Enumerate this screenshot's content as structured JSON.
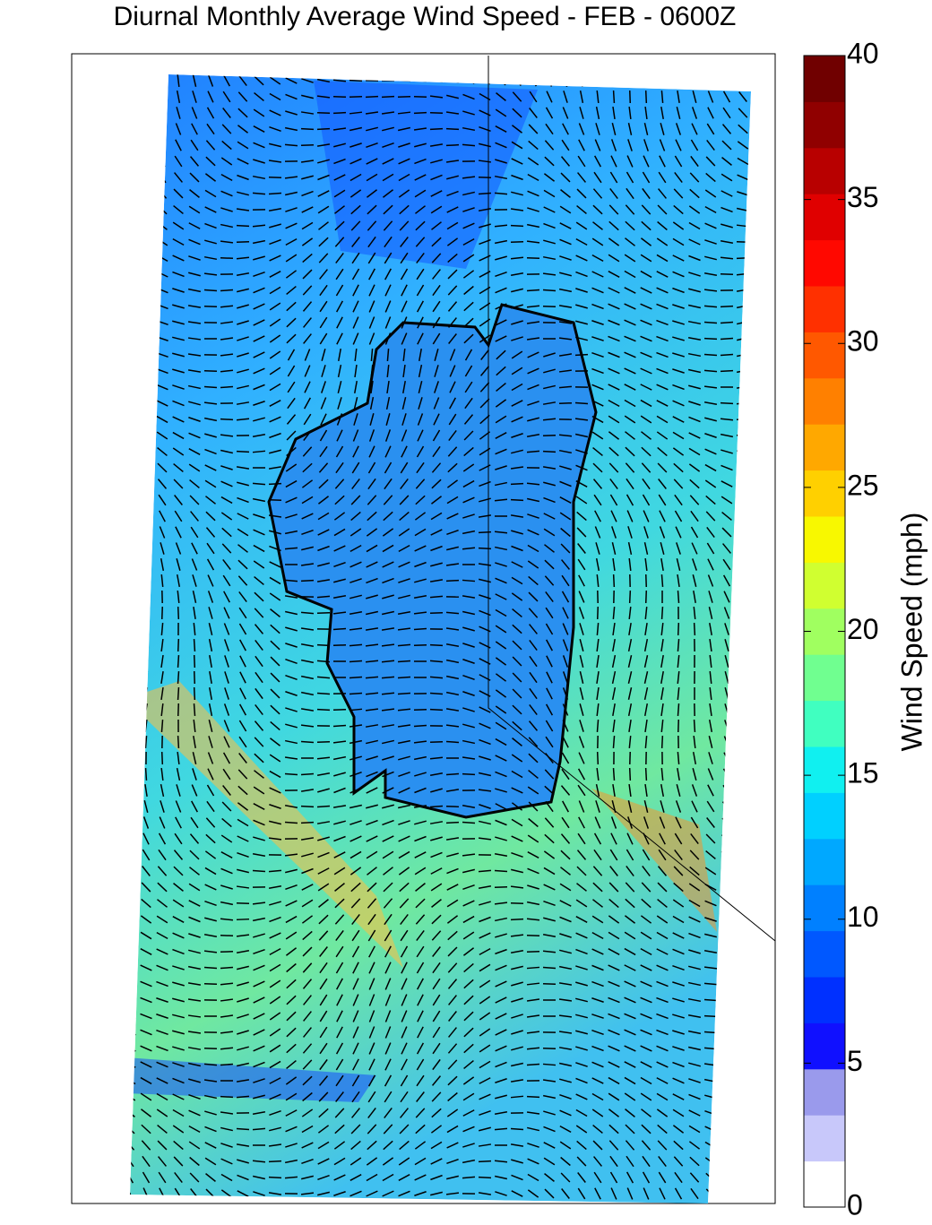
{
  "chart_data": {
    "type": "heatmap",
    "title": "Diurnal Monthly Average Wind Speed - FEB - 0600Z",
    "colorbar": {
      "label": "Wind Speed (mph)",
      "lim": [
        0,
        40
      ],
      "ticks": [
        0,
        5,
        10,
        15,
        20,
        25,
        30,
        35,
        40
      ],
      "colors": [
        "#ffffff",
        "#c8c8fa",
        "#9a9aec",
        "#1010ff",
        "#0030ff",
        "#0058ff",
        "#0080ff",
        "#00a8ff",
        "#00d0ff",
        "#10f0f0",
        "#40ffc0",
        "#70ff90",
        "#a0ff60",
        "#d0ff30",
        "#f8f800",
        "#ffd000",
        "#ffa800",
        "#ff8000",
        "#ff5800",
        "#ff3000",
        "#ff0800",
        "#e00000",
        "#b80000",
        "#900000",
        "#700000"
      ]
    }
  }
}
